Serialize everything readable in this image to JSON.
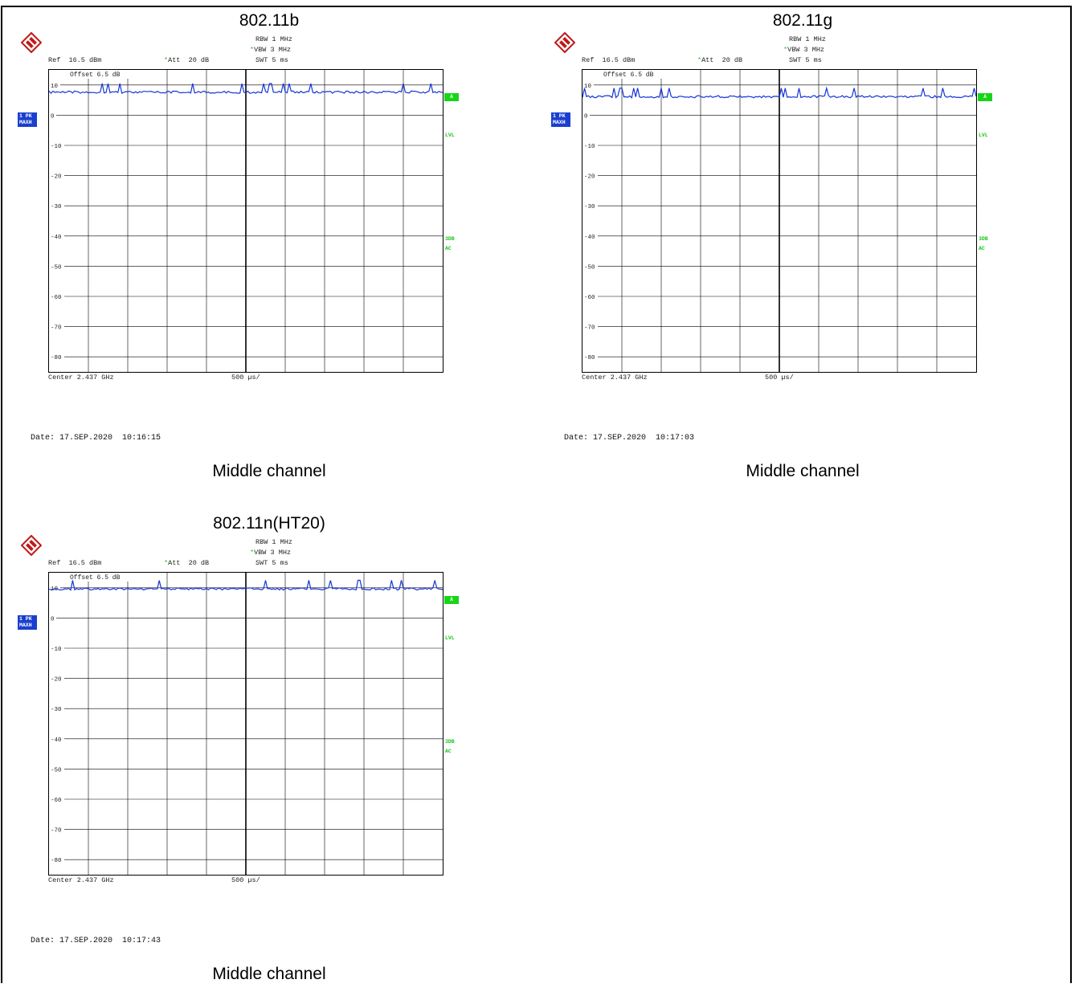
{
  "colors": {
    "trace": "#1535d6",
    "badge_blue": "#1a3fd0",
    "status_green": "#17d617",
    "grid": "#000000"
  },
  "panels": [
    {
      "title": "802.11b",
      "ref": "Ref  16.5 dBm",
      "att": "Att  20 dB",
      "rbw": "RBW 1 MHz",
      "vbw": "VBW 3 MHz",
      "swt": "SWT 5 ms",
      "offset": "Offset  6.5 dB",
      "badge1": "1 PK",
      "badge2": "MAXH",
      "marker_a": "A",
      "lvl": "LVL",
      "db3": "3DB",
      "ac": "AC",
      "center": "Center 2.437 GHz",
      "span": "500 µs/",
      "date": "Date: 17.SEP.2020  10:16:15",
      "caption": "Middle channel",
      "y_labels": [
        "10",
        "0",
        "-10",
        "-20",
        "-30",
        "-40",
        "-50",
        "-60",
        "-70",
        "-80"
      ]
    },
    {
      "title": "802.11g",
      "ref": "Ref  16.5 dBm",
      "att": "Att  20 dB",
      "rbw": "RBW 1 MHz",
      "vbw": "VBW 3 MHz",
      "swt": "SWT 5 ms",
      "offset": "Offset  6.5 dB",
      "badge1": "1 PK",
      "badge2": "MAXH",
      "marker_a": "A",
      "lvl": "LVL",
      "db3": "3DB",
      "ac": "AC",
      "center": "Center 2.437 GHz",
      "span": "500 µs/",
      "date": "Date: 17.SEP.2020  10:17:03",
      "caption": "Middle channel",
      "y_labels": [
        "10",
        "0",
        "-10",
        "-20",
        "-30",
        "-40",
        "-50",
        "-60",
        "-70",
        "-80"
      ]
    },
    {
      "title": "802.11n(HT20)",
      "ref": "Ref  16.5 dBm",
      "att": "Att  20 dB",
      "rbw": "RBW 1 MHz",
      "vbw": "VBW 3 MHz",
      "swt": "SWT 5 ms",
      "offset": "Offset  6.5 dB",
      "badge1": "1 PK",
      "badge2": "MAXH",
      "marker_a": "A",
      "lvl": "LVL",
      "db3": "3DB",
      "ac": "AC",
      "center": "Center 2.437 GHz",
      "span": "500 µs/",
      "date": "Date: 17.SEP.2020  10:17:43",
      "caption": "Middle channel",
      "y_labels": [
        "10",
        "0",
        "-10",
        "-20",
        "-30",
        "-40",
        "-50",
        "-60",
        "-70",
        "-80"
      ]
    }
  ],
  "chart_data": [
    {
      "type": "line",
      "title": "802.11b",
      "xlabel": "Center 2.437 GHz",
      "ylabel": "",
      "ylim": [
        -85,
        15
      ],
      "xlim": [
        0,
        10
      ],
      "grid": true,
      "series": [
        {
          "x": [
            0,
            1,
            2,
            3,
            4,
            5,
            6,
            7,
            8,
            9,
            10
          ],
          "values": [
            8,
            8,
            8,
            8,
            8,
            8,
            8,
            8,
            8,
            8,
            8
          ]
        }
      ]
    },
    {
      "type": "line",
      "title": "802.11g",
      "xlabel": "Center 2.437 GHz",
      "ylabel": "",
      "ylim": [
        -85,
        15
      ],
      "xlim": [
        0,
        10
      ],
      "grid": true,
      "series": [
        {
          "x": [
            0,
            1,
            2,
            3,
            4,
            5,
            6,
            7,
            8,
            9,
            10
          ],
          "values": [
            6.5,
            6.5,
            6.5,
            6.5,
            6.5,
            6.5,
            6.5,
            6.5,
            6.5,
            6.5,
            6.5
          ]
        }
      ]
    },
    {
      "type": "line",
      "title": "802.11n(HT20)",
      "xlabel": "Center 2.437 GHz",
      "ylabel": "",
      "ylim": [
        -85,
        15
      ],
      "xlim": [
        0,
        10
      ],
      "grid": true,
      "series": [
        {
          "x": [
            0,
            1,
            2,
            3,
            4,
            5,
            6,
            7,
            8,
            9,
            10
          ],
          "values": [
            10,
            10,
            10,
            10,
            10,
            10,
            10,
            10,
            10,
            10,
            10
          ]
        }
      ]
    }
  ]
}
